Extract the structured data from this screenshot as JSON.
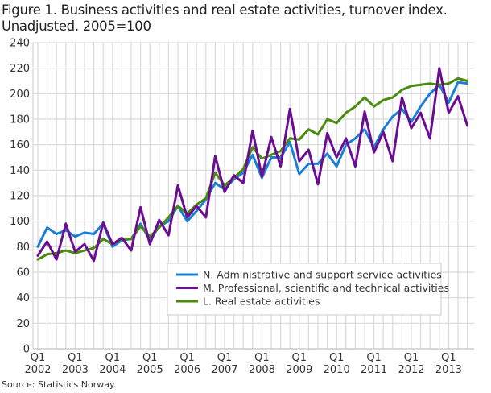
{
  "title": "Figure 1. Business activities and real estate activities, turnover index. Unadjusted. 2005=100",
  "title_lines": [
    "Figure 1. Business activities and real estate activities, turnover index.",
    "Unadjusted. 2005=100"
  ],
  "source": "Source: Statistics Norway.",
  "chart_data": {
    "type": "line",
    "title": "Figure 1. Business activities and real estate activities, turnover index. Unadjusted. 2005=100",
    "xlabel": "",
    "ylabel": "",
    "ylim": [
      0,
      240
    ],
    "yticks": [
      0,
      20,
      40,
      60,
      80,
      100,
      120,
      140,
      160,
      180,
      200,
      220,
      240
    ],
    "grid": true,
    "legend_position": "bottom-right",
    "x_tick_labels": [
      {
        "q": "Q1",
        "year": "2002",
        "index": 0
      },
      {
        "q": "Q1",
        "year": "2003",
        "index": 4
      },
      {
        "q": "Q1",
        "year": "2004",
        "index": 8
      },
      {
        "q": "Q1",
        "year": "2005",
        "index": 12
      },
      {
        "q": "Q1",
        "year": "2006",
        "index": 16
      },
      {
        "q": "Q1",
        "year": "2007",
        "index": 20
      },
      {
        "q": "Q1",
        "year": "2008",
        "index": 24
      },
      {
        "q": "Q1",
        "year": "2009",
        "index": 28
      },
      {
        "q": "Q1",
        "year": "2010",
        "index": 32
      },
      {
        "q": "Q1",
        "year": "2011",
        "index": 36
      },
      {
        "q": "Q1",
        "year": "2012",
        "index": 40
      },
      {
        "q": "Q1",
        "year": "2013",
        "index": 44
      }
    ],
    "x": [
      "2002Q1",
      "2002Q2",
      "2002Q3",
      "2002Q4",
      "2003Q1",
      "2003Q2",
      "2003Q3",
      "2003Q4",
      "2004Q1",
      "2004Q2",
      "2004Q3",
      "2004Q4",
      "2005Q1",
      "2005Q2",
      "2005Q3",
      "2005Q4",
      "2006Q1",
      "2006Q2",
      "2006Q3",
      "2006Q4",
      "2007Q1",
      "2007Q2",
      "2007Q3",
      "2007Q4",
      "2008Q1",
      "2008Q2",
      "2008Q3",
      "2008Q4",
      "2009Q1",
      "2009Q2",
      "2009Q3",
      "2009Q4",
      "2010Q1",
      "2010Q2",
      "2010Q3",
      "2010Q4",
      "2011Q1",
      "2011Q2",
      "2011Q3",
      "2011Q4",
      "2012Q1",
      "2012Q2",
      "2012Q3",
      "2012Q4",
      "2013Q1",
      "2013Q2",
      "2013Q3"
    ],
    "series": [
      {
        "name": "N. Administrative and support service activities",
        "color": "#1a7fd4",
        "values": [
          80,
          95,
          90,
          93,
          88,
          91,
          90,
          98,
          80,
          85,
          86,
          98,
          85,
          96,
          100,
          112,
          100,
          108,
          117,
          130,
          125,
          133,
          138,
          152,
          134,
          150,
          150,
          162,
          137,
          145,
          145,
          153,
          143,
          160,
          165,
          172,
          158,
          172,
          182,
          188,
          178,
          190,
          200,
          207,
          193,
          209,
          208
        ]
      },
      {
        "name": "M. Professional, scientific and technical activities",
        "color": "#6a0d91",
        "values": [
          73,
          84,
          70,
          98,
          76,
          82,
          69,
          99,
          82,
          87,
          77,
          111,
          82,
          101,
          89,
          128,
          103,
          112,
          103,
          151,
          123,
          136,
          130,
          171,
          135,
          166,
          143,
          188,
          147,
          156,
          129,
          169,
          150,
          165,
          143,
          186,
          154,
          170,
          147,
          197,
          173,
          185,
          165,
          220,
          185,
          198,
          175
        ]
      },
      {
        "name": "L. Real estate activities",
        "color": "#4a8a0c",
        "values": [
          70,
          74,
          75,
          77,
          75,
          77,
          79,
          86,
          82,
          86,
          86,
          96,
          88,
          95,
          103,
          112,
          106,
          113,
          118,
          138,
          128,
          134,
          141,
          158,
          149,
          152,
          155,
          165,
          164,
          172,
          168,
          180,
          177,
          185,
          190,
          197,
          190,
          195,
          197,
          203,
          206,
          207,
          208,
          207,
          208,
          212,
          210
        ]
      }
    ]
  }
}
